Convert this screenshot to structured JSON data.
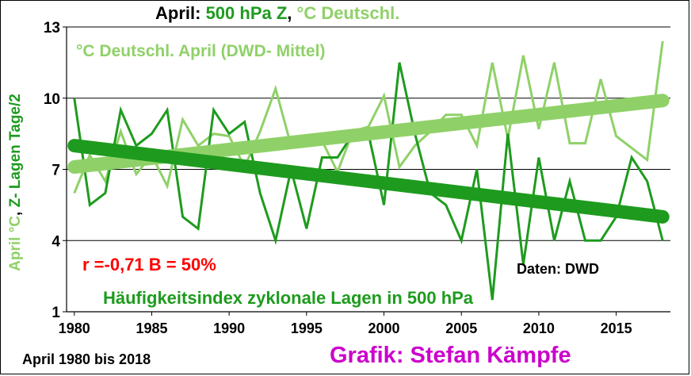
{
  "title": {
    "part1": "April: ",
    "part2": "500 hPa Z",
    "part3": ", ",
    "part4": "°C Deutschl."
  },
  "ylabel": {
    "part1": "April °C",
    "part2": ", ",
    "part3": "Z- Lagen Tage/2"
  },
  "annotations": {
    "series_temp": "°C Deutschl. April (DWD- Mittel)",
    "correlation": "r =-0,71 B = 50%",
    "source": "Daten: DWD",
    "series_z": "Häufigkeitsindex zyklonale Lagen in 500 hPa",
    "period": "April 1980 bis 2018",
    "credit": "Grafik: Stefan Kämpfe"
  },
  "colors": {
    "dark_green": "#1e9b1e",
    "light_green": "#8fd168",
    "red": "#ff0000",
    "magenta": "#cc00cc"
  },
  "chart_data": {
    "type": "line",
    "x": [
      1980,
      1981,
      1982,
      1983,
      1984,
      1985,
      1986,
      1987,
      1988,
      1989,
      1990,
      1991,
      1992,
      1993,
      1994,
      1995,
      1996,
      1997,
      1998,
      1999,
      2000,
      2001,
      2002,
      2003,
      2004,
      2005,
      2006,
      2007,
      2008,
      2009,
      2010,
      2011,
      2012,
      2013,
      2014,
      2015,
      2016,
      2017,
      2018
    ],
    "series": [
      {
        "name": "°C Deutschl. April (DWD- Mittel)",
        "color": "#8fd168",
        "values": [
          6.0,
          7.6,
          6.5,
          8.6,
          6.8,
          7.6,
          6.3,
          9.1,
          8.0,
          8.5,
          8.4,
          7.1,
          8.6,
          10.4,
          8.0,
          8.4,
          8.2,
          6.9,
          8.6,
          8.8,
          10.1,
          7.1,
          8.0,
          8.6,
          9.3,
          9.3,
          8.0,
          11.5,
          8.3,
          11.8,
          8.7,
          11.5,
          8.1,
          8.1,
          10.8,
          8.4,
          7.9,
          7.4,
          12.4
        ],
        "trend": [
          7.1,
          9.9
        ]
      },
      {
        "name": "Häufigkeitsindex zyklonale Lagen in 500 hPa",
        "color": "#1e9b1e",
        "values": [
          10.0,
          5.5,
          6.0,
          9.5,
          8.0,
          8.5,
          9.5,
          5.0,
          4.5,
          9.5,
          8.5,
          9.0,
          6.0,
          4.0,
          7.0,
          4.5,
          7.5,
          7.5,
          8.5,
          8.5,
          5.5,
          11.5,
          8.5,
          6.0,
          5.5,
          4.0,
          7.0,
          1.5,
          8.5,
          3.0,
          7.5,
          4.0,
          6.5,
          4.0,
          4.0,
          5.0,
          7.5,
          6.5,
          4.0
        ],
        "trend": [
          8.0,
          5.0
        ]
      }
    ],
    "xlim": [
      1979.5,
      2018.5
    ],
    "ylim": [
      1,
      13
    ],
    "xticks": [
      1980,
      1985,
      1990,
      1995,
      2000,
      2005,
      2010,
      2015
    ],
    "yticks": [
      1,
      4,
      7,
      10,
      13
    ],
    "grid": "horizontal"
  }
}
